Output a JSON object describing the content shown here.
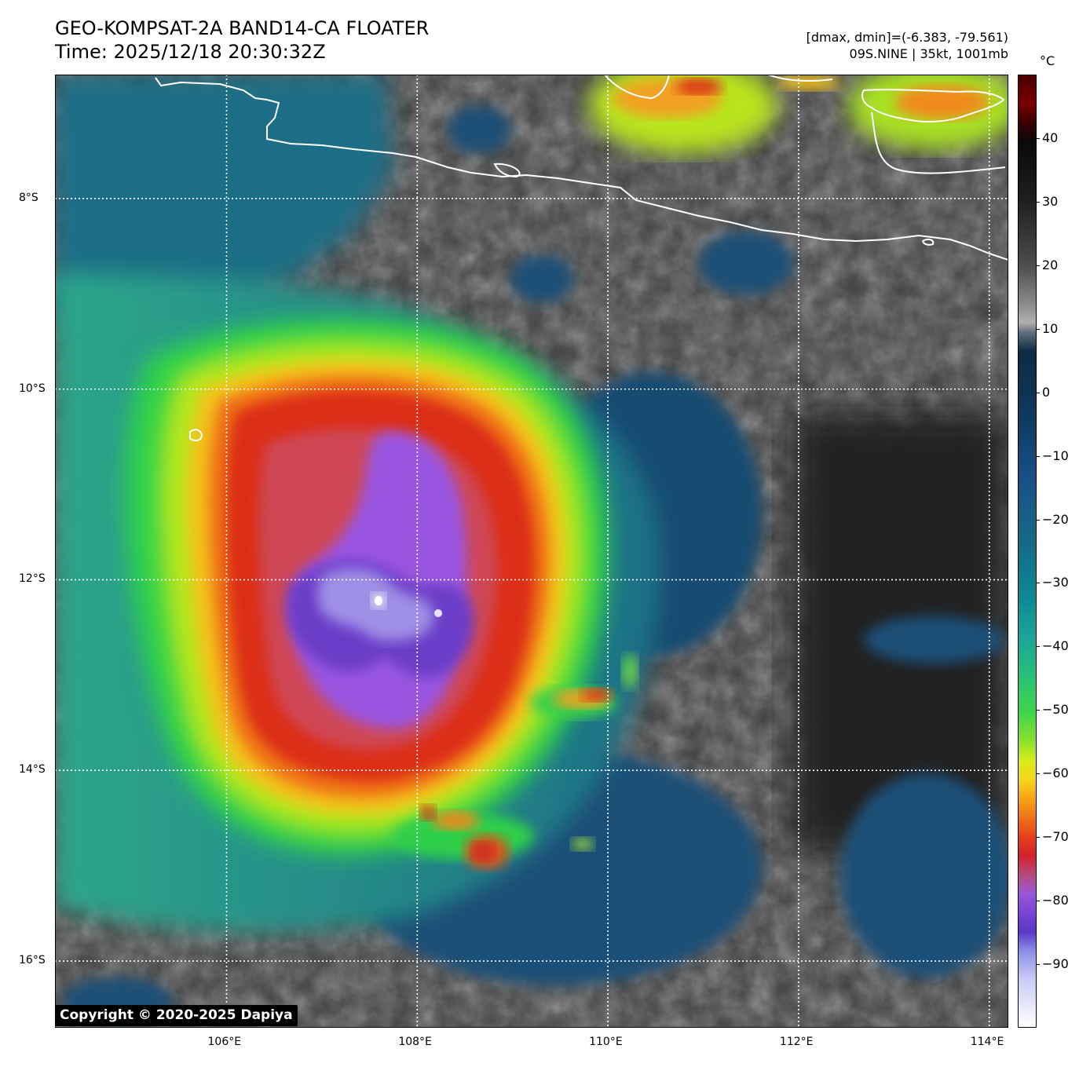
{
  "title_line1": "GEO-KOMPSAT-2A BAND14-CA FLOATER",
  "title_line2": "Time: 2025/12/18 20:30:32Z",
  "info_line1": "[dmax, dmin]=(-6.383, -79.561)",
  "info_line2": "09S.NINE | 35kt, 1001mb",
  "copyright": "Copyright © 2020-2025 Dapiya",
  "map": {
    "lon_range": [
      104.2,
      114.2
    ],
    "lat_range": [
      -16.7,
      -6.7
    ],
    "lon_ticks": [
      {
        "value": 106,
        "label": "106°E"
      },
      {
        "value": 108,
        "label": "108°E"
      },
      {
        "value": 110,
        "label": "110°E"
      },
      {
        "value": 112,
        "label": "112°E"
      },
      {
        "value": 114,
        "label": "114°E"
      }
    ],
    "lat_ticks": [
      {
        "value": -8,
        "label": "8°S"
      },
      {
        "value": -10,
        "label": "10°S"
      },
      {
        "value": -12,
        "label": "12°S"
      },
      {
        "value": -14,
        "label": "14°S"
      },
      {
        "value": -16,
        "label": "16°S"
      }
    ],
    "storm_center": {
      "lon": 107.6,
      "lat": -12.2
    }
  },
  "colorbar": {
    "unit": "°C",
    "range": [
      -100,
      50
    ],
    "ticks": [
      {
        "value": 40,
        "label": "40"
      },
      {
        "value": 30,
        "label": "30"
      },
      {
        "value": 20,
        "label": "20"
      },
      {
        "value": 10,
        "label": "10"
      },
      {
        "value": 0,
        "label": "0"
      },
      {
        "value": -10,
        "label": "−10"
      },
      {
        "value": -20,
        "label": "−20"
      },
      {
        "value": -30,
        "label": "−30"
      },
      {
        "value": -40,
        "label": "−40"
      },
      {
        "value": -50,
        "label": "−50"
      },
      {
        "value": -60,
        "label": "−60"
      },
      {
        "value": -70,
        "label": "−70"
      },
      {
        "value": -80,
        "label": "−80"
      },
      {
        "value": -90,
        "label": "−90"
      }
    ]
  }
}
